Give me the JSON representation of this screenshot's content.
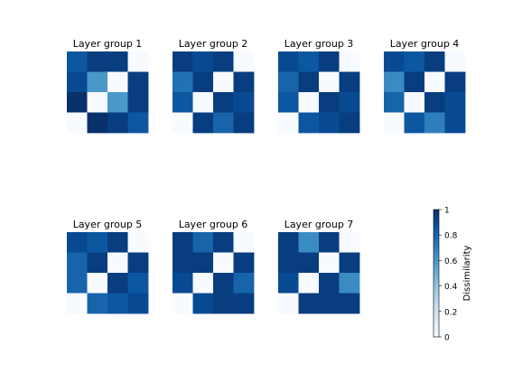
{
  "chart_data": {
    "type": "heatmap",
    "colormap": "Blues",
    "value_range": [
      0,
      1
    ],
    "panels": [
      {
        "title": "Layer group 1",
        "matrix": [
          [
            0.85,
            0.95,
            0.95,
            0.0
          ],
          [
            0.9,
            0.6,
            0.0,
            0.95
          ],
          [
            1.0,
            0.0,
            0.6,
            0.95
          ],
          [
            0.0,
            1.0,
            0.95,
            0.85
          ]
        ]
      },
      {
        "title": "Layer group 2",
        "matrix": [
          [
            0.95,
            0.9,
            0.95,
            0.0
          ],
          [
            0.75,
            0.95,
            0.0,
            0.95
          ],
          [
            0.85,
            0.0,
            0.95,
            0.9
          ],
          [
            0.0,
            0.95,
            0.8,
            0.95
          ]
        ]
      },
      {
        "title": "Layer group 3",
        "matrix": [
          [
            0.9,
            0.85,
            0.95,
            0.0
          ],
          [
            0.8,
            0.95,
            0.0,
            0.95
          ],
          [
            0.85,
            0.0,
            0.95,
            0.9
          ],
          [
            0.0,
            0.85,
            0.9,
            0.95
          ]
        ]
      },
      {
        "title": "Layer group 4",
        "matrix": [
          [
            0.9,
            0.85,
            0.95,
            0.0
          ],
          [
            0.65,
            0.95,
            0.0,
            0.95
          ],
          [
            0.8,
            0.0,
            0.95,
            0.9
          ],
          [
            0.0,
            0.85,
            0.7,
            0.9
          ]
        ]
      },
      {
        "title": "Layer group 5",
        "matrix": [
          [
            0.9,
            0.85,
            0.95,
            0.0
          ],
          [
            0.8,
            0.95,
            0.0,
            0.95
          ],
          [
            0.8,
            0.0,
            0.95,
            0.85
          ],
          [
            0.0,
            0.8,
            0.85,
            0.9
          ]
        ]
      },
      {
        "title": "Layer group 6",
        "matrix": [
          [
            0.95,
            0.8,
            0.95,
            0.0
          ],
          [
            0.95,
            0.95,
            0.0,
            0.95
          ],
          [
            0.9,
            0.0,
            0.95,
            0.8
          ],
          [
            0.0,
            0.9,
            0.95,
            0.95
          ]
        ]
      },
      {
        "title": "Layer group 7",
        "matrix": [
          [
            0.95,
            0.65,
            0.95,
            0.0
          ],
          [
            0.95,
            0.95,
            0.0,
            0.95
          ],
          [
            0.9,
            0.0,
            0.95,
            0.65
          ],
          [
            0.0,
            0.95,
            0.95,
            0.95
          ]
        ]
      }
    ],
    "colorbar": {
      "label": "Dissimilarity",
      "ticks": [
        "0",
        "0.2",
        "0.4",
        "0.6",
        "0.8",
        "1"
      ],
      "tick_values": [
        0,
        0.2,
        0.4,
        0.6,
        0.8,
        1.0
      ]
    }
  }
}
